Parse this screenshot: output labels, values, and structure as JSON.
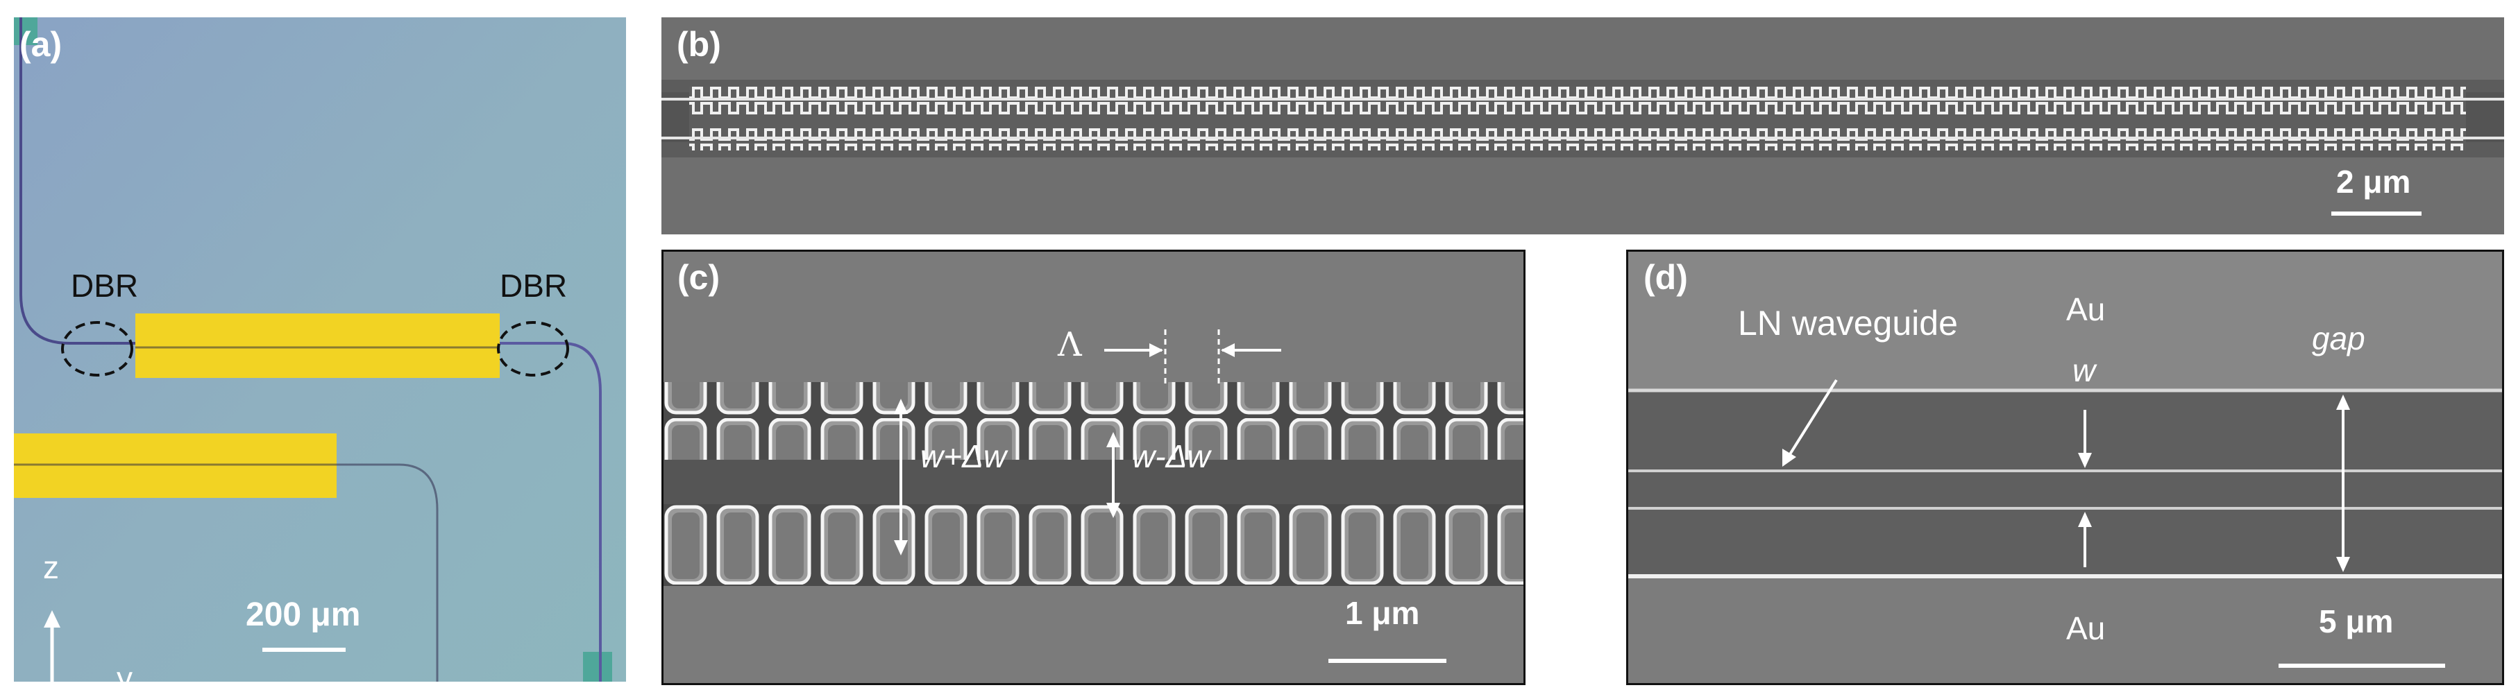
{
  "figure": {
    "panel_a": {
      "letter": "(a)",
      "dbr_left": "DBR",
      "dbr_right": "DBR",
      "scale_bar": "200 μm",
      "axis_z": "z",
      "axis_y": "y",
      "colors": {
        "background": "#8fa9c2",
        "electrode": "#f2d323",
        "teal_pad": "#4fa79a"
      }
    },
    "panel_b": {
      "letter": "(b)",
      "scale_bar": "2 μm"
    },
    "panel_c": {
      "letter": "(c)",
      "period_label": "Λ",
      "wide_label": "w+Δw",
      "narrow_label": "w-Δw",
      "scale_bar": "1 μm"
    },
    "panel_d": {
      "letter": "(d)",
      "waveguide_label": "LN waveguide",
      "au_top": "Au",
      "au_bottom": "Au",
      "width_label": "w",
      "gap_label": "gap",
      "scale_bar": "5 μm"
    }
  }
}
